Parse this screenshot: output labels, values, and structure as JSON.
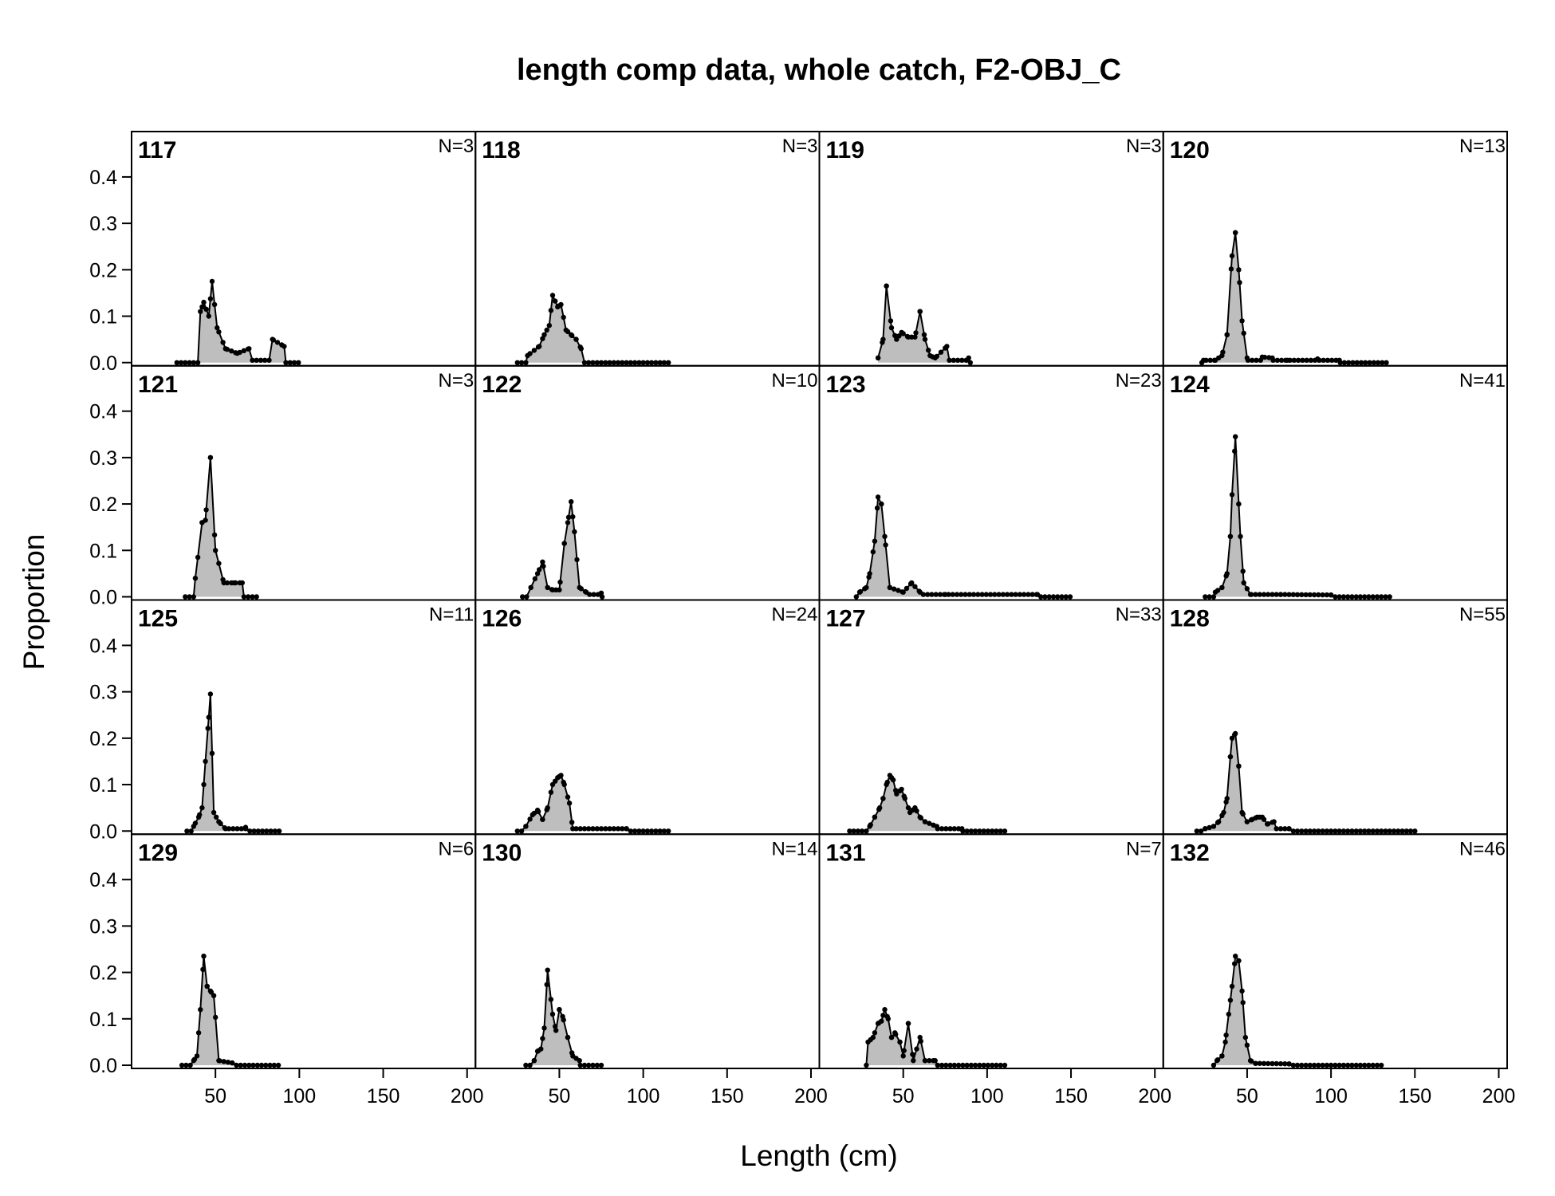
{
  "chart_data": {
    "type": "area",
    "title": "length comp data, whole catch, F2-OBJ_C",
    "xlabel": "Length (cm)",
    "ylabel": "Proportion",
    "xlim": [
      0,
      205
    ],
    "ylim": [
      0,
      0.46
    ],
    "x_ticks": [
      "50",
      "100",
      "150",
      "200"
    ],
    "y_ticks": [
      "0.0",
      "0.1",
      "0.2",
      "0.3",
      "0.4"
    ],
    "fill_color": "#bebebe",
    "line_color": "#000000",
    "panels": [
      {
        "label": "117",
        "n_label": "N=3",
        "peaks": [
          [
            41,
            0.11
          ],
          [
            43,
            0.13
          ],
          [
            46,
            0.1
          ],
          [
            48,
            0.175
          ],
          [
            51,
            0.075
          ],
          [
            56,
            0.03
          ],
          [
            63,
            0.02
          ],
          [
            70,
            0.03
          ],
          [
            84,
            0.05
          ],
          [
            91,
            0.035
          ]
        ],
        "start": 27,
        "end": 100,
        "baseline": 0.0
      },
      {
        "label": "121",
        "n_label": "N=3",
        "peaks": [
          [
            38,
            0.04
          ],
          [
            42,
            0.16
          ],
          [
            44,
            0.165
          ],
          [
            47,
            0.3
          ],
          [
            50,
            0.1
          ],
          [
            55,
            0.03
          ],
          [
            61,
            0.03
          ],
          [
            66,
            0.03
          ]
        ],
        "start": 32,
        "end": 75,
        "baseline": 0.0
      },
      {
        "label": "125",
        "n_label": "N=11",
        "peaks": [
          [
            37,
            0.01
          ],
          [
            40,
            0.03
          ],
          [
            42,
            0.05
          ],
          [
            44,
            0.15
          ],
          [
            46,
            0.245
          ],
          [
            47,
            0.295
          ],
          [
            49,
            0.04
          ],
          [
            52,
            0.02
          ],
          [
            56,
            0.005
          ],
          [
            68,
            0.008
          ]
        ],
        "start": 33,
        "end": 90,
        "baseline": 0.0
      },
      {
        "label": "129",
        "n_label": "N=6",
        "peaks": [
          [
            37,
            0.01
          ],
          [
            39,
            0.02
          ],
          [
            41,
            0.12
          ],
          [
            43,
            0.235
          ],
          [
            45,
            0.17
          ],
          [
            47,
            0.16
          ],
          [
            49,
            0.15
          ],
          [
            52,
            0.01
          ],
          [
            60,
            0.005
          ]
        ],
        "start": 30,
        "end": 88,
        "baseline": 0.0
      },
      {
        "label": "118",
        "n_label": "N=3",
        "peaks": [
          [
            31,
            0.015
          ],
          [
            38,
            0.035
          ],
          [
            41,
            0.06
          ],
          [
            44,
            0.08
          ],
          [
            46,
            0.145
          ],
          [
            49,
            0.12
          ],
          [
            51,
            0.125
          ],
          [
            54,
            0.07
          ],
          [
            57,
            0.06
          ],
          [
            60,
            0.05
          ],
          [
            63,
            0.03
          ]
        ],
        "start": 25,
        "end": 115,
        "baseline": 0.0
      },
      {
        "label": "122",
        "n_label": "N=10",
        "peaks": [
          [
            33,
            0.02
          ],
          [
            37,
            0.05
          ],
          [
            40,
            0.075
          ],
          [
            43,
            0.02
          ],
          [
            46,
            0.015
          ],
          [
            50,
            0.015
          ],
          [
            53,
            0.115
          ],
          [
            55,
            0.16
          ],
          [
            57,
            0.205
          ],
          [
            59,
            0.14
          ],
          [
            62,
            0.02
          ],
          [
            66,
            0.01
          ],
          [
            75,
            0.008
          ]
        ],
        "start": 28,
        "end": 77,
        "baseline": 0.0
      },
      {
        "label": "126",
        "n_label": "N=24",
        "peaks": [
          [
            30,
            0.01
          ],
          [
            34,
            0.035
          ],
          [
            37,
            0.045
          ],
          [
            40,
            0.025
          ],
          [
            43,
            0.05
          ],
          [
            46,
            0.1
          ],
          [
            49,
            0.115
          ],
          [
            51,
            0.12
          ],
          [
            53,
            0.1
          ],
          [
            56,
            0.06
          ],
          [
            58,
            0.005
          ],
          [
            90,
            0.005
          ]
        ],
        "start": 25,
        "end": 115,
        "baseline": 0.0
      },
      {
        "label": "130",
        "n_label": "N=14",
        "peaks": [
          [
            35,
            0.01
          ],
          [
            37,
            0.03
          ],
          [
            39,
            0.035
          ],
          [
            41,
            0.08
          ],
          [
            43,
            0.205
          ],
          [
            46,
            0.11
          ],
          [
            48,
            0.075
          ],
          [
            50,
            0.12
          ],
          [
            52,
            0.105
          ],
          [
            55,
            0.06
          ],
          [
            58,
            0.02
          ],
          [
            62,
            0.01
          ]
        ],
        "start": 30,
        "end": 77,
        "baseline": 0.0
      },
      {
        "label": "119",
        "n_label": "N=3",
        "peaks": [
          [
            35,
            0.01
          ],
          [
            38,
            0.05
          ],
          [
            40,
            0.165
          ],
          [
            43,
            0.075
          ],
          [
            46,
            0.05
          ],
          [
            49,
            0.065
          ],
          [
            53,
            0.055
          ],
          [
            57,
            0.055
          ],
          [
            60,
            0.11
          ],
          [
            63,
            0.05
          ],
          [
            66,
            0.015
          ],
          [
            69,
            0.01
          ],
          [
            76,
            0.035
          ],
          [
            89,
            0.01
          ]
        ],
        "start": 35,
        "end": 90,
        "baseline": 0.0
      },
      {
        "label": "123",
        "n_label": "N=23",
        "peaks": [
          [
            24,
            0.01
          ],
          [
            28,
            0.02
          ],
          [
            30,
            0.05
          ],
          [
            33,
            0.12
          ],
          [
            35,
            0.215
          ],
          [
            37,
            0.2
          ],
          [
            39,
            0.13
          ],
          [
            42,
            0.02
          ],
          [
            50,
            0.01
          ],
          [
            55,
            0.03
          ],
          [
            60,
            0.01
          ],
          [
            75,
            0.005
          ],
          [
            130,
            0.005
          ]
        ],
        "start": 22,
        "end": 150,
        "baseline": 0.0
      },
      {
        "label": "127",
        "n_label": "N=33",
        "peaks": [
          [
            30,
            0.01
          ],
          [
            33,
            0.03
          ],
          [
            36,
            0.05
          ],
          [
            38,
            0.07
          ],
          [
            40,
            0.1
          ],
          [
            42,
            0.12
          ],
          [
            44,
            0.11
          ],
          [
            46,
            0.08
          ],
          [
            49,
            0.09
          ],
          [
            51,
            0.07
          ],
          [
            54,
            0.04
          ],
          [
            57,
            0.05
          ],
          [
            60,
            0.03
          ],
          [
            63,
            0.02
          ],
          [
            70,
            0.01
          ],
          [
            85,
            0.005
          ]
        ],
        "start": 18,
        "end": 112,
        "baseline": 0.0
      },
      {
        "label": "131",
        "n_label": "N=7",
        "peaks": [
          [
            29,
            0.05
          ],
          [
            32,
            0.06
          ],
          [
            35,
            0.09
          ],
          [
            37,
            0.095
          ],
          [
            39,
            0.12
          ],
          [
            41,
            0.1
          ],
          [
            43,
            0.06
          ],
          [
            45,
            0.07
          ],
          [
            48,
            0.05
          ],
          [
            50,
            0.02
          ],
          [
            53,
            0.09
          ],
          [
            56,
            0.01
          ],
          [
            60,
            0.06
          ],
          [
            63,
            0.01
          ],
          [
            69,
            0.01
          ]
        ],
        "start": 28,
        "end": 112,
        "baseline": 0.0
      },
      {
        "label": "120",
        "n_label": "N=13",
        "peaks": [
          [
            24,
            0.005
          ],
          [
            31,
            0.005
          ],
          [
            35,
            0.015
          ],
          [
            38,
            0.06
          ],
          [
            41,
            0.23
          ],
          [
            43,
            0.28
          ],
          [
            45,
            0.2
          ],
          [
            47,
            0.09
          ],
          [
            50,
            0.01
          ],
          [
            59,
            0.012
          ],
          [
            65,
            0.01
          ],
          [
            74,
            0.005
          ],
          [
            92,
            0.008
          ],
          [
            105,
            0.005
          ]
        ],
        "start": 23,
        "end": 133,
        "baseline": 0.0
      },
      {
        "label": "124",
        "n_label": "N=41",
        "peaks": [
          [
            31,
            0.01
          ],
          [
            35,
            0.02
          ],
          [
            38,
            0.05
          ],
          [
            40,
            0.13
          ],
          [
            41,
            0.22
          ],
          [
            43,
            0.345
          ],
          [
            45,
            0.2
          ],
          [
            46,
            0.13
          ],
          [
            48,
            0.03
          ],
          [
            52,
            0.005
          ],
          [
            70,
            0.005
          ],
          [
            100,
            0.004
          ]
        ],
        "start": 25,
        "end": 136,
        "baseline": 0.0
      },
      {
        "label": "128",
        "n_label": "N=55",
        "peaks": [
          [
            25,
            0.005
          ],
          [
            30,
            0.01
          ],
          [
            33,
            0.02
          ],
          [
            36,
            0.04
          ],
          [
            38,
            0.07
          ],
          [
            40,
            0.16
          ],
          [
            41,
            0.2
          ],
          [
            43,
            0.21
          ],
          [
            45,
            0.14
          ],
          [
            47,
            0.04
          ],
          [
            50,
            0.02
          ],
          [
            53,
            0.025
          ],
          [
            56,
            0.03
          ],
          [
            59,
            0.03
          ],
          [
            62,
            0.015
          ],
          [
            66,
            0.02
          ],
          [
            75,
            0.005
          ]
        ],
        "start": 20,
        "end": 150,
        "baseline": 0.0
      },
      {
        "label": "132",
        "n_label": "N=46",
        "peaks": [
          [
            32,
            0.01
          ],
          [
            35,
            0.02
          ],
          [
            37,
            0.05
          ],
          [
            39,
            0.11
          ],
          [
            41,
            0.17
          ],
          [
            43,
            0.235
          ],
          [
            45,
            0.225
          ],
          [
            47,
            0.16
          ],
          [
            49,
            0.06
          ],
          [
            52,
            0.01
          ],
          [
            55,
            0.004
          ],
          [
            75,
            0.003
          ]
        ],
        "start": 30,
        "end": 130,
        "baseline": 0.0
      }
    ]
  }
}
